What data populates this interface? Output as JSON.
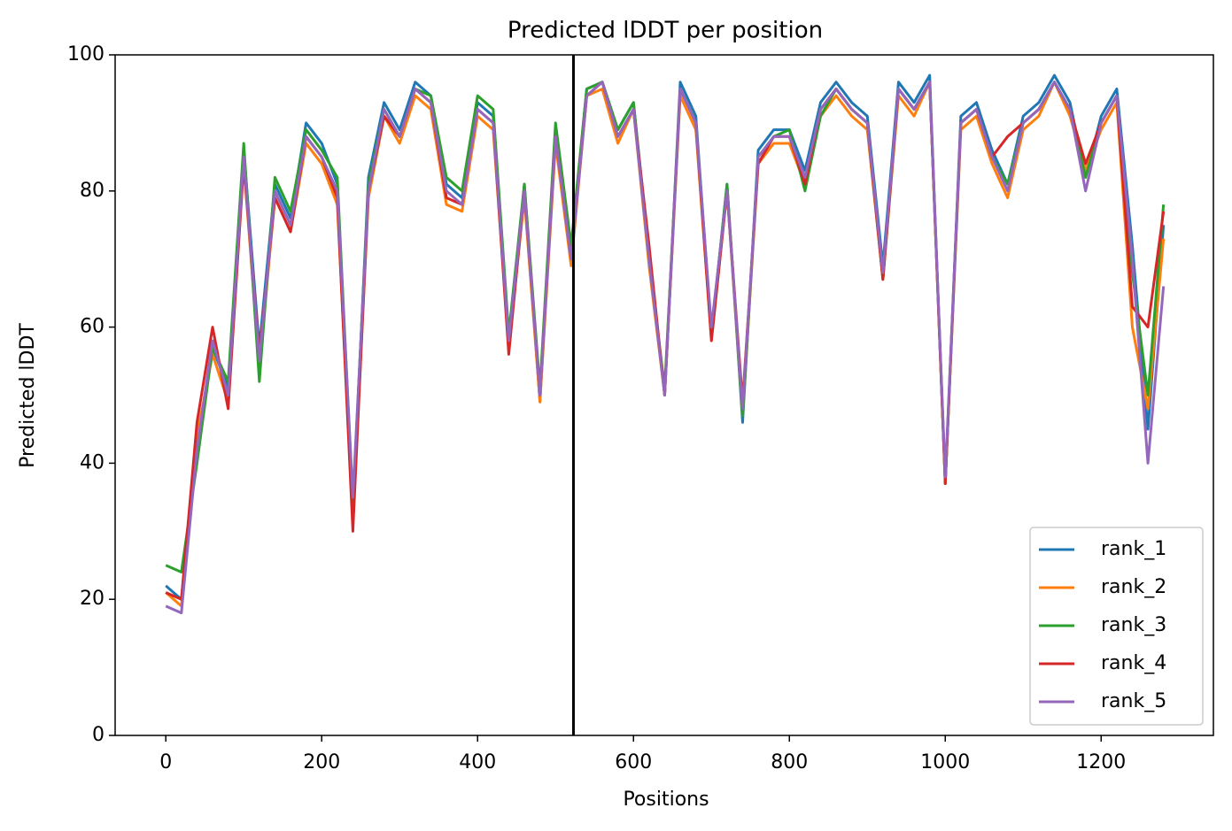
{
  "chart_data": {
    "type": "line",
    "title": "Predicted lDDT per position",
    "xlabel": "Positions",
    "ylabel": "Predicted lDDT",
    "x": [
      0,
      20,
      40,
      60,
      80,
      100,
      120,
      140,
      160,
      180,
      200,
      220,
      240,
      260,
      280,
      300,
      320,
      340,
      360,
      380,
      400,
      420,
      440,
      460,
      480,
      500,
      520,
      540,
      560,
      580,
      600,
      620,
      640,
      660,
      680,
      700,
      720,
      740,
      760,
      780,
      800,
      820,
      840,
      860,
      880,
      900,
      920,
      940,
      960,
      980,
      1000,
      1020,
      1040,
      1060,
      1080,
      1100,
      1120,
      1140,
      1160,
      1180,
      1200,
      1220,
      1240,
      1260,
      1280
    ],
    "series": [
      {
        "name": "rank_1",
        "color": "#1f77b4",
        "values": [
          22,
          20,
          43,
          57,
          51,
          86,
          57,
          81,
          76,
          90,
          87,
          81,
          33,
          82,
          93,
          89,
          96,
          94,
          81,
          79,
          93,
          91,
          57,
          81,
          49,
          89,
          71,
          95,
          96,
          89,
          93,
          71,
          50,
          96,
          91,
          59,
          81,
          46,
          86,
          89,
          89,
          83,
          93,
          96,
          93,
          91,
          69,
          96,
          93,
          97,
          37,
          91,
          93,
          86,
          81,
          91,
          93,
          97,
          93,
          82,
          91,
          95,
          72,
          45,
          75
        ]
      },
      {
        "name": "rank_2",
        "color": "#ff7f0e",
        "values": [
          21,
          19,
          44,
          56,
          49,
          84,
          54,
          79,
          74,
          87,
          84,
          78,
          32,
          79,
          91,
          87,
          94,
          92,
          78,
          77,
          91,
          89,
          57,
          79,
          49,
          87,
          69,
          94,
          95,
          87,
          92,
          69,
          50,
          94,
          89,
          58,
          80,
          47,
          84,
          87,
          87,
          81,
          91,
          94,
          91,
          89,
          67,
          94,
          91,
          96,
          37,
          89,
          91,
          84,
          79,
          89,
          91,
          96,
          91,
          83,
          89,
          93,
          60,
          48,
          73
        ]
      },
      {
        "name": "rank_3",
        "color": "#2ca02c",
        "values": [
          25,
          24,
          40,
          57,
          52,
          87,
          52,
          82,
          77,
          89,
          86,
          82,
          34,
          81,
          92,
          88,
          95,
          94,
          82,
          80,
          94,
          92,
          59,
          81,
          51,
          90,
          72,
          95,
          96,
          89,
          93,
          70,
          51,
          95,
          90,
          59,
          81,
          47,
          85,
          88,
          89,
          80,
          91,
          95,
          92,
          90,
          67,
          95,
          92,
          96,
          37,
          90,
          92,
          85,
          81,
          90,
          92,
          96,
          92,
          82,
          90,
          94,
          68,
          50,
          78
        ]
      },
      {
        "name": "rank_4",
        "color": "#d62728",
        "values": [
          21,
          20,
          46,
          60,
          48,
          84,
          56,
          79,
          74,
          88,
          85,
          79,
          30,
          80,
          91,
          88,
          95,
          93,
          79,
          78,
          92,
          90,
          56,
          80,
          50,
          88,
          70,
          94,
          96,
          88,
          92,
          72,
          50,
          95,
          90,
          58,
          80,
          49,
          84,
          88,
          88,
          81,
          92,
          95,
          92,
          90,
          67,
          95,
          92,
          96,
          37,
          90,
          92,
          85,
          88,
          90,
          92,
          96,
          92,
          84,
          90,
          94,
          63,
          60,
          77
        ]
      },
      {
        "name": "rank_5",
        "color": "#9467bd",
        "values": [
          19,
          18,
          42,
          58,
          50,
          85,
          55,
          80,
          75,
          88,
          85,
          80,
          35,
          80,
          92,
          88,
          95,
          93,
          80,
          78,
          92,
          90,
          58,
          80,
          50,
          88,
          70,
          94,
          96,
          88,
          92,
          70,
          50,
          95,
          90,
          60,
          80,
          48,
          85,
          88,
          88,
          82,
          92,
          95,
          92,
          90,
          68,
          95,
          92,
          96,
          38,
          90,
          92,
          85,
          80,
          90,
          92,
          96,
          92,
          80,
          90,
          94,
          70,
          40,
          66
        ]
      }
    ],
    "vlines": [
      523
    ],
    "xlim": [
      -65,
      1344
    ],
    "ylim": [
      0,
      100
    ],
    "xticks": [
      0,
      200,
      400,
      600,
      800,
      1000,
      1200
    ],
    "yticks": [
      0,
      20,
      40,
      60,
      80,
      100
    ],
    "legend": "lower right"
  }
}
